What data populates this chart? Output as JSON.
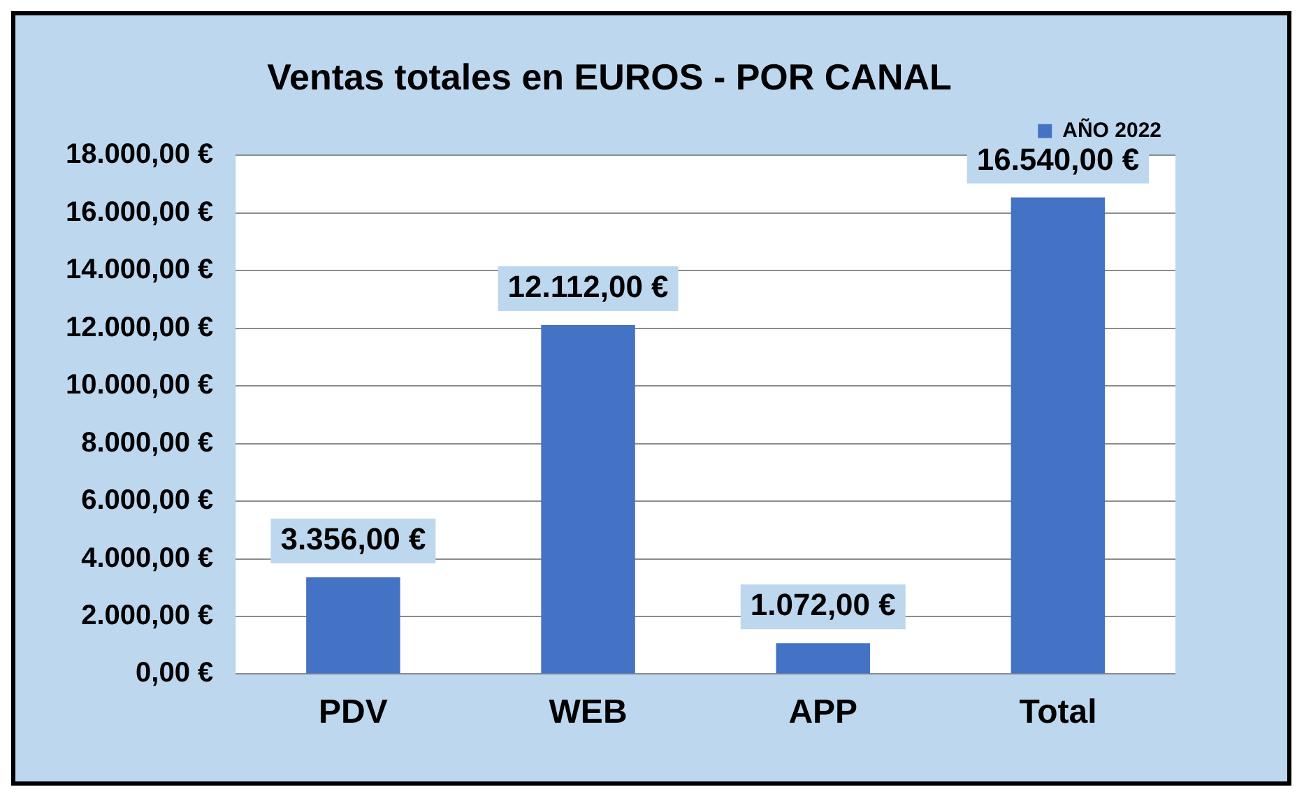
{
  "chart_data": {
    "type": "bar",
    "title": "Ventas totales en EUROS - POR CANAL",
    "categories": [
      "PDV",
      "WEB",
      "APP",
      "Total"
    ],
    "series": [
      {
        "name": "AÑO 2022",
        "color": "#4472c4",
        "values": [
          3356,
          12112,
          1072,
          16540
        ],
        "value_labels": [
          "3.356,00 €",
          "12.112,00 €",
          "1.072,00 €",
          "16.540,00 €"
        ]
      }
    ],
    "ylim": [
      0,
      18000
    ],
    "yticks": [
      {
        "value": 0,
        "label": "0,00 €"
      },
      {
        "value": 2000,
        "label": "2.000,00 €"
      },
      {
        "value": 4000,
        "label": "4.000,00 €"
      },
      {
        "value": 6000,
        "label": "6.000,00 €"
      },
      {
        "value": 8000,
        "label": "8.000,00 €"
      },
      {
        "value": 10000,
        "label": "10.000,00 €"
      },
      {
        "value": 12000,
        "label": "12.000,00 €"
      },
      {
        "value": 14000,
        "label": "14.000,00 €"
      },
      {
        "value": 16000,
        "label": "16.000,00 €"
      },
      {
        "value": 18000,
        "label": "18.000,00 €"
      }
    ],
    "grid": "y",
    "legend": "top right"
  }
}
